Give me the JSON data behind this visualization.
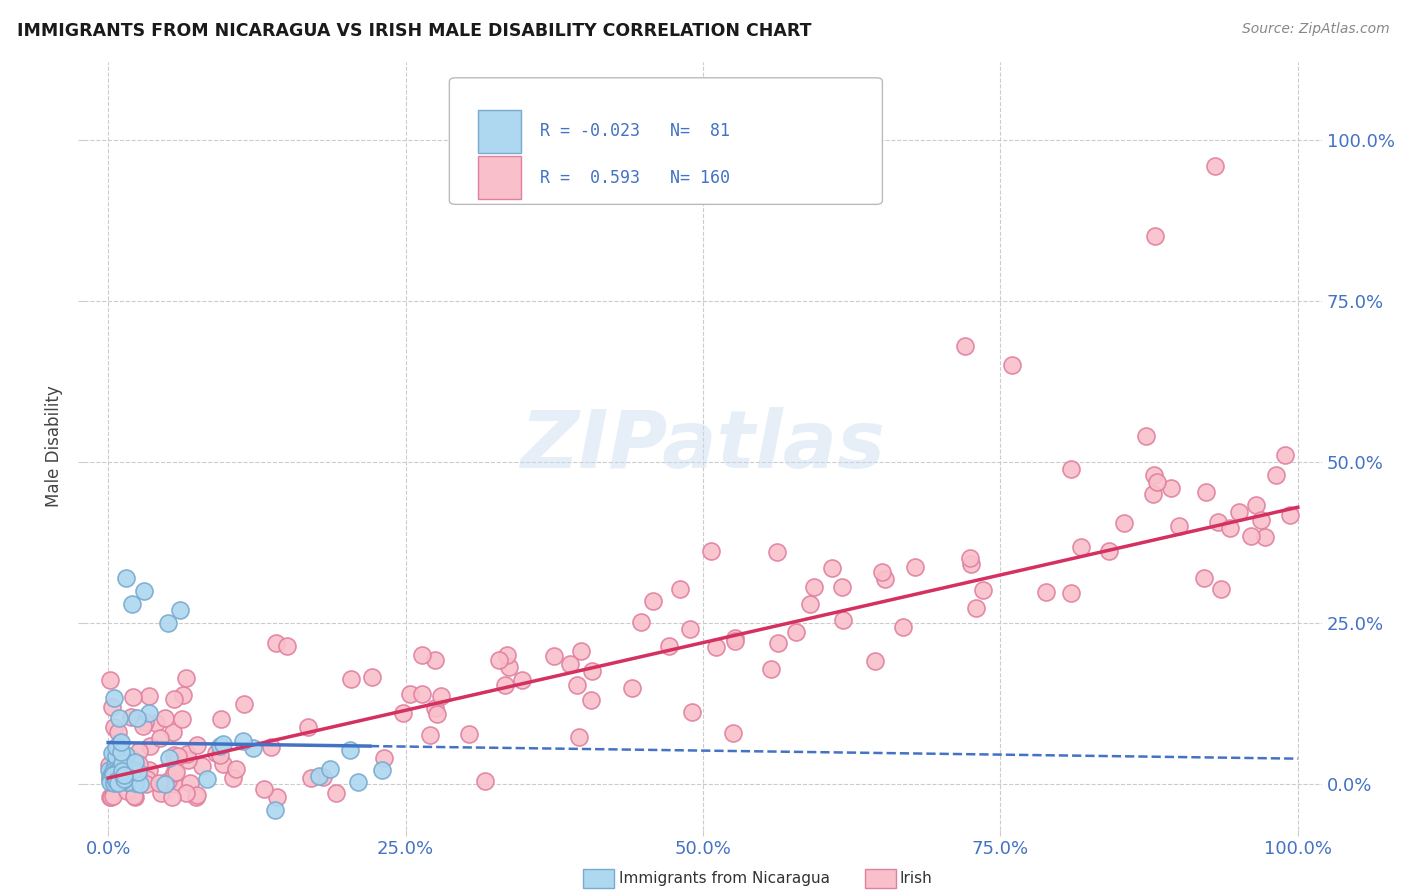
{
  "title": "IMMIGRANTS FROM NICARAGUA VS IRISH MALE DISABILITY CORRELATION CHART",
  "source": "Source: ZipAtlas.com",
  "ylabel": "Male Disability",
  "xlim": [
    -0.02,
    1.02
  ],
  "ylim": [
    -0.07,
    1.12
  ],
  "x_ticks": [
    0.0,
    0.25,
    0.5,
    0.75,
    1.0
  ],
  "x_tick_labels": [
    "0.0%",
    "25.0%",
    "50.0%",
    "75.0%",
    "100.0%"
  ],
  "y_ticks": [
    0.0,
    0.25,
    0.5,
    0.75,
    1.0
  ],
  "y_tick_labels": [
    "0.0%",
    "25.0%",
    "50.0%",
    "75.0%",
    "100.0%"
  ],
  "blue_R": -0.023,
  "blue_N": 81,
  "pink_R": 0.593,
  "pink_N": 160,
  "blue_color": "#ADD8F0",
  "pink_color": "#F9BFCA",
  "blue_edge": "#7AAAD0",
  "pink_edge": "#E080A0",
  "blue_line_color": "#4472C4",
  "pink_line_color": "#D43060",
  "watermark": "ZIPatlas",
  "background_color": "#FFFFFF",
  "grid_color": "#CCCCCC",
  "tick_color": "#4472C4",
  "title_color": "#1A1A1A",
  "source_color": "#888888",
  "ylabel_color": "#444444"
}
